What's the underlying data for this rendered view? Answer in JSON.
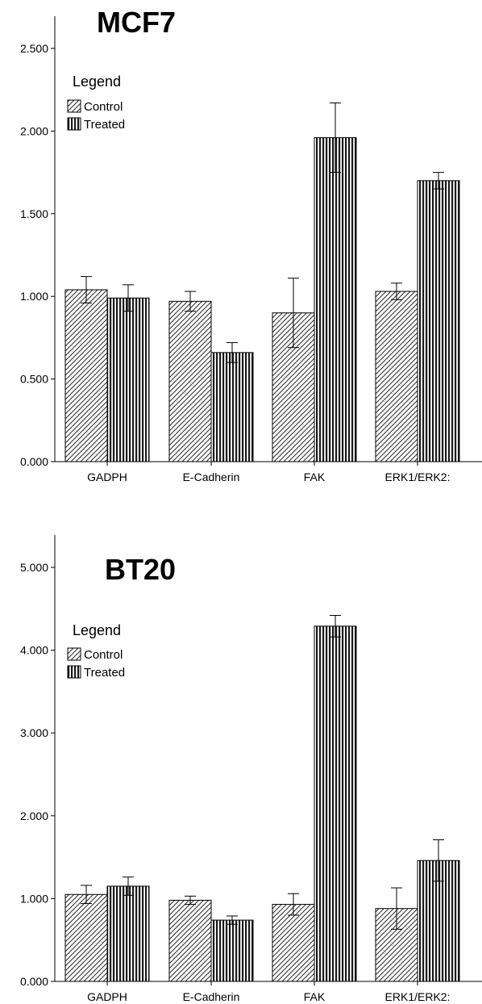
{
  "chart_data": [
    {
      "type": "bar",
      "title": "MCF7",
      "categories": [
        "GADPH",
        "E-Cadherin",
        "FAK",
        "ERK1/ERK2:"
      ],
      "series": [
        {
          "name": "Control",
          "values": [
            1.04,
            0.97,
            0.9,
            1.03
          ],
          "error": [
            0.08,
            0.06,
            0.21,
            0.05
          ]
        },
        {
          "name": "Treated",
          "values": [
            0.99,
            0.66,
            1.96,
            1.7
          ],
          "error": [
            0.08,
            0.06,
            0.21,
            0.05
          ]
        }
      ],
      "yticks": [
        "0.000",
        "0.500",
        "1.000",
        "1.500",
        "2.000",
        "2.500"
      ],
      "ylim": [
        0,
        2.5
      ],
      "legend": {
        "title": "Legend",
        "placement": "top-left"
      },
      "grid": false
    },
    {
      "type": "bar",
      "title": "BT20",
      "categories": [
        "GADPH",
        "E-Cadherin",
        "FAK",
        "ERK1/ERK2:"
      ],
      "series": [
        {
          "name": "Control",
          "values": [
            1.05,
            0.98,
            0.93,
            0.88
          ],
          "error": [
            0.11,
            0.05,
            0.13,
            0.25
          ]
        },
        {
          "name": "Treated",
          "values": [
            1.15,
            0.74,
            4.29,
            1.46
          ],
          "error": [
            0.11,
            0.05,
            0.13,
            0.25
          ]
        }
      ],
      "yticks": [
        "0.000",
        "1.000",
        "2.000",
        "3.000",
        "4.000",
        "5.000"
      ],
      "ylim": [
        0,
        5
      ],
      "legend": {
        "title": "Legend",
        "placement": "top-left"
      },
      "grid": false
    }
  ]
}
